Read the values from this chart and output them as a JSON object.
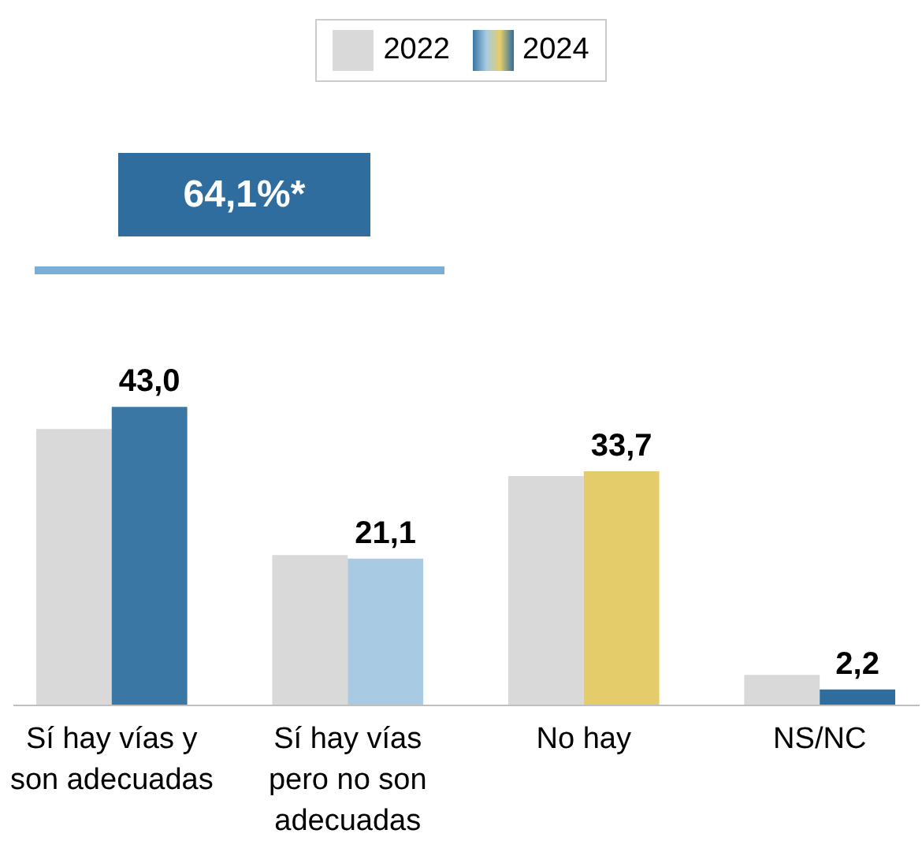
{
  "chart_data": {
    "type": "bar",
    "categories": [
      "Sí hay vías y son adecuadas",
      "Sí hay vías pero no son adecuadas",
      "No hay",
      "NS/NC"
    ],
    "series": [
      {
        "name": "2022",
        "color": "#d9d9d9",
        "values": [
          39.8,
          21.6,
          33.0,
          4.3
        ]
      },
      {
        "name": "2024",
        "colors": [
          "#3a77a4",
          "#a8cbe3",
          "#e5cc6a",
          "#2f6d9e"
        ],
        "values": [
          43.0,
          21.1,
          33.7,
          2.2
        ],
        "value_labels": [
          "43,0",
          "21,1",
          "33,7",
          "2,2"
        ]
      }
    ],
    "legend": "top",
    "annotations": [
      "64,1%*"
    ]
  }
}
